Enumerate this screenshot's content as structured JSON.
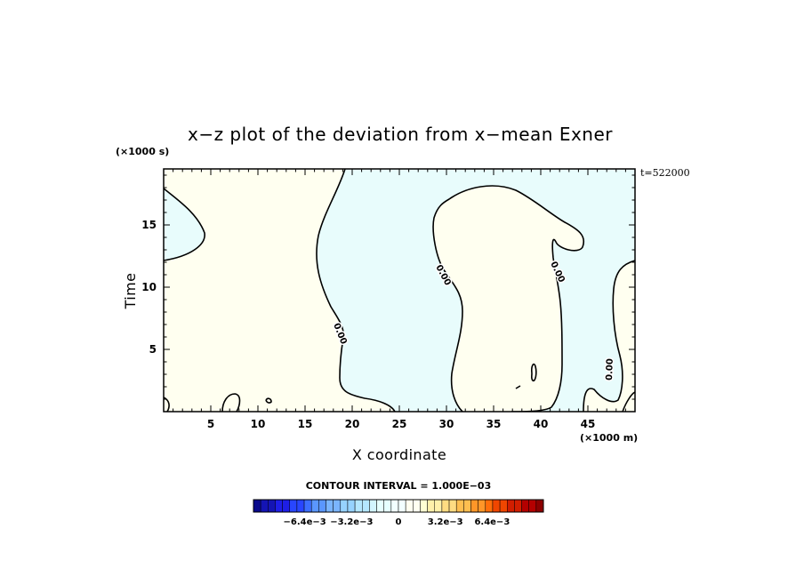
{
  "chart_data": {
    "type": "contour",
    "title": "x−z plot of the deviation from x−mean Exner",
    "xlabel": "X coordinate",
    "ylabel": "Time",
    "x_unit_label": "(×1000 m)",
    "y_unit_label": "(×1000 s)",
    "time_label": "t=522000",
    "xlim": [
      0,
      50
    ],
    "ylim": [
      0,
      19.5
    ],
    "x_ticks": [
      5,
      10,
      15,
      20,
      25,
      30,
      35,
      40,
      45
    ],
    "y_ticks": [
      5,
      10,
      15
    ],
    "contour_level": 0,
    "contour_labels": [
      "0.00",
      "0.00",
      "0.00",
      "0.00"
    ],
    "regions": [
      {
        "sign": "positive",
        "color": "#fffff0"
      },
      {
        "sign": "negative",
        "color": "#e8fcfc"
      }
    ],
    "colorbar": {
      "title": "CONTOUR INTERVAL = 1.000E−03",
      "tick_labels": [
        "−6.4e−3",
        "−3.2e−3",
        "0",
        "3.2e−3",
        "6.4e−3"
      ],
      "tick_values": [
        -0.0064,
        -0.0032,
        0,
        0.0032,
        0.0064
      ],
      "range": [
        -0.0099,
        0.0099
      ],
      "n_segments": 40,
      "colors": [
        "#0a0a8c",
        "#1414b4",
        "#1e1ee6",
        "#2846ff",
        "#3c6eff",
        "#5a96ff",
        "#7ab4ff",
        "#96d2ff",
        "#b4e6ff",
        "#d2f5ff",
        "#e6ffff",
        "#f2ffff",
        "#fffff0",
        "#ffffd2",
        "#fff0aa",
        "#ffdc82",
        "#ffbe50",
        "#ff9628",
        "#ff6e0a",
        "#f04600",
        "#d21e00",
        "#b40000",
        "#8c0000"
      ]
    }
  }
}
